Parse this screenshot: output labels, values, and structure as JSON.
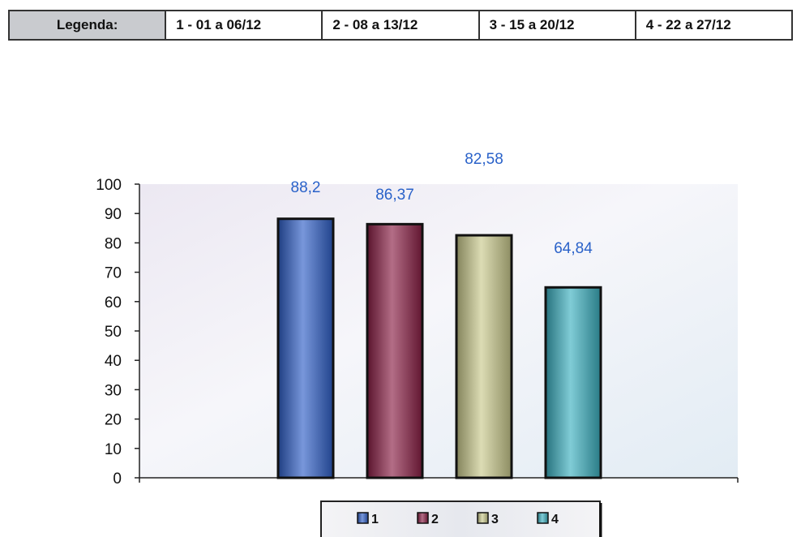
{
  "legend_table": {
    "header": "Legenda:",
    "entries": [
      "1 - 01 a 06/12",
      "2 - 08 a 13/12",
      "3 - 15 a 20/12",
      "4 - 22 a 27/12"
    ]
  },
  "chart_data": {
    "type": "bar",
    "categories": [
      "1",
      "2",
      "3",
      "4"
    ],
    "values": [
      88.2,
      86.37,
      82.58,
      64.84
    ],
    "value_labels": [
      "88,2",
      "86,37",
      "82,58",
      "64,84"
    ],
    "ylim": [
      0,
      100
    ],
    "yticks": [
      0,
      10,
      20,
      30,
      40,
      50,
      60,
      70,
      80,
      90,
      100
    ],
    "legend": [
      "1",
      "2",
      "3",
      "4"
    ],
    "legend_position": "bottom",
    "grid": false,
    "colors": [
      "#2f5fc8",
      "#8a1f45",
      "#c9c98c",
      "#3bb0c0"
    ],
    "label_color": "#2a62c9"
  }
}
